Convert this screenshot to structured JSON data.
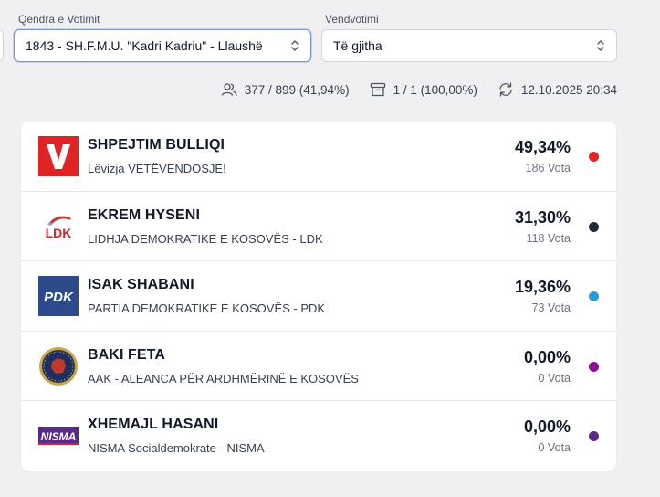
{
  "filters": {
    "center_label": "Qendra e Votimit",
    "center_value": "1843 - SH.F.M.U. \"Kadri Kadriu\" - Llaushë",
    "station_label": "Vendvotimi",
    "station_value": "Të gjitha"
  },
  "stats": {
    "voters": "377 / 899 (41,94%)",
    "boxes": "1 / 1 (100,00%)",
    "updated": "12.10.2025 20:34"
  },
  "candidates": [
    {
      "name": "SHPEJTIM BULLIQI",
      "party": "Lëvizja VETËVENDOSJE!",
      "percent": "49,34%",
      "votes": "186 Vota",
      "color": "#e02424",
      "logo_text": "V",
      "icon": "vetevendosje-logo"
    },
    {
      "name": "EKREM HYSENI",
      "party": "LIDHJA DEMOKRATIKE E KOSOVËS - LDK",
      "percent": "31,30%",
      "votes": "118 Vota",
      "color": "#1f2937",
      "logo_text": "LDK",
      "icon": "ldk-logo"
    },
    {
      "name": "ISAK SHABANI",
      "party": "PARTIA DEMOKRATIKE E KOSOVËS - PDK",
      "percent": "19,36%",
      "votes": "73 Vota",
      "color": "#2b9bd8",
      "logo_text": "PDK",
      "icon": "pdk-logo"
    },
    {
      "name": "BAKI FETA",
      "party": "AAK - ALEANCA PËR ARDHMËRINË E KOSOVËS",
      "percent": "0,00%",
      "votes": "0 Vota",
      "color": "#8b0f8e",
      "logo_text": "",
      "icon": "aak-logo"
    },
    {
      "name": "XHEMAJL HASANI",
      "party": "NISMA Socialdemokrate - NISMA",
      "percent": "0,00%",
      "votes": "0 Vota",
      "color": "#5b2a86",
      "logo_text": "NISMA",
      "icon": "nisma-logo"
    }
  ]
}
